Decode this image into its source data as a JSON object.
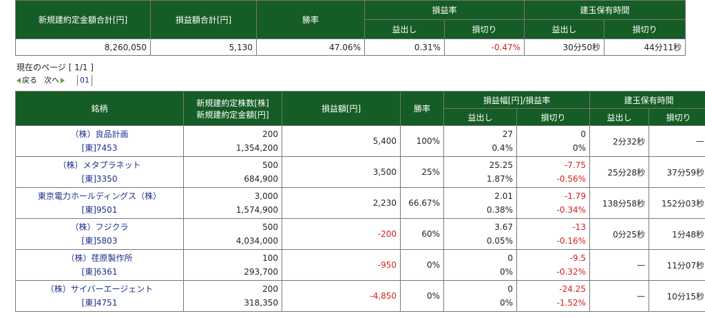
{
  "summary": {
    "headers": {
      "total_amount": "新規建約定金額合計[円]",
      "total_pl": "損益額合計[円]",
      "win_rate": "勝率",
      "pl_rate": "損益率",
      "hold_time": "建玉保有時間",
      "profit": "益出し",
      "loss": "損切り"
    },
    "values": {
      "total_amount": "8,260,050",
      "total_pl": "5,130",
      "win_rate": "47.06%",
      "pl_rate_profit": "0.31%",
      "pl_rate_loss": "-0.47%",
      "hold_profit": "30分50秒",
      "hold_loss": "44分11秒"
    }
  },
  "pager": {
    "current_page": "現在のページ [ 1/1 ]",
    "back": "戻る",
    "next": "次へ",
    "page_link": "01"
  },
  "detail": {
    "headers": {
      "stock": "銘柄",
      "shares": "新規建約定株数[株]",
      "amount": "新規建約定金額[円]",
      "pl": "損益額[円]",
      "win_rate": "勝率",
      "pl_range": "損益幅[円]/損益率",
      "hold_time": "建玉保有時間",
      "profit": "益出し",
      "loss": "損切り"
    },
    "rows": [
      {
        "name": "（株）良品計画",
        "code": "[東]7453",
        "shares": "200",
        "amount": "1,354,200",
        "pl": "5,400",
        "win": "100%",
        "prof_range": "27",
        "prof_rate": "0.4%",
        "loss_range": "0",
        "loss_rate": "0%",
        "hold_prof": "2分32秒",
        "hold_loss": "—"
      },
      {
        "name": "（株）メタプラネット",
        "code": "[東]3350",
        "shares": "500",
        "amount": "684,900",
        "pl": "3,500",
        "win": "25%",
        "prof_range": "25.25",
        "prof_rate": "1.87%",
        "loss_range": "-7.75",
        "loss_rate": "-0.56%",
        "hold_prof": "25分28秒",
        "hold_loss": "37分59秒"
      },
      {
        "name": "東京電力ホールディングス（株）",
        "code": "[東]9501",
        "shares": "3,000",
        "amount": "1,574,900",
        "pl": "2,230",
        "win": "66.67%",
        "prof_range": "2.01",
        "prof_rate": "0.38%",
        "loss_range": "-1.79",
        "loss_rate": "-0.34%",
        "hold_prof": "138分58秒",
        "hold_loss": "152分03秒"
      },
      {
        "name": "（株）フジクラ",
        "code": "[東]5803",
        "shares": "500",
        "amount": "4,034,000",
        "pl": "-200",
        "win": "60%",
        "prof_range": "3.67",
        "prof_rate": "0.05%",
        "loss_range": "-13",
        "loss_rate": "-0.16%",
        "hold_prof": "0分25秒",
        "hold_loss": "1分48秒"
      },
      {
        "name": "（株）荏原製作所",
        "code": "[東]6361",
        "shares": "100",
        "amount": "293,700",
        "pl": "-950",
        "win": "0%",
        "prof_range": "0",
        "prof_rate": "0%",
        "loss_range": "-9.5",
        "loss_rate": "-0.32%",
        "hold_prof": "—",
        "hold_loss": "11分07秒"
      },
      {
        "name": "（株）サイバーエージェント",
        "code": "[東]4751",
        "shares": "200",
        "amount": "318,350",
        "pl": "-4,850",
        "win": "0%",
        "prof_range": "0",
        "prof_rate": "0%",
        "loss_range": "-24.25",
        "loss_rate": "-1.52%",
        "hold_prof": "—",
        "hold_loss": "10分15秒"
      }
    ]
  }
}
